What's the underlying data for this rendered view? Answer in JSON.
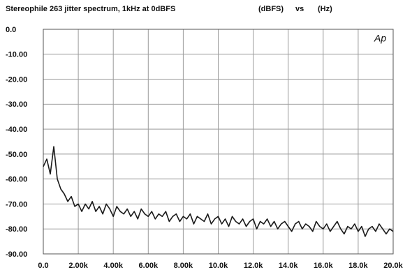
{
  "chart_data": {
    "type": "line",
    "title": "Stereophile  263 jitter spectrum, 1kHz at 0dBFS",
    "y_label": "(dBFS)",
    "connector": "vs",
    "x_label": "(Hz)",
    "watermark": "Ap",
    "x": [
      0,
      200,
      400,
      600,
      800,
      1000,
      1200,
      1400,
      1600,
      1800,
      2000,
      2200,
      2400,
      2600,
      2800,
      3000,
      3200,
      3400,
      3600,
      3800,
      4000,
      4200,
      4400,
      4600,
      4800,
      5000,
      5200,
      5400,
      5600,
      5800,
      6000,
      6200,
      6400,
      6600,
      6800,
      7000,
      7200,
      7400,
      7600,
      7800,
      8000,
      8200,
      8400,
      8600,
      8800,
      9000,
      9200,
      9400,
      9600,
      9800,
      10000,
      10200,
      10400,
      10600,
      10800,
      11000,
      11200,
      11400,
      11600,
      11800,
      12000,
      12200,
      12400,
      12600,
      12800,
      13000,
      13200,
      13400,
      13600,
      13800,
      14000,
      14200,
      14400,
      14600,
      14800,
      15000,
      15200,
      15400,
      15600,
      15800,
      16000,
      16200,
      16400,
      16600,
      16800,
      17000,
      17200,
      17400,
      17600,
      17800,
      18000,
      18200,
      18400,
      18600,
      18800,
      19000,
      19200,
      19400,
      19600,
      19800,
      20000
    ],
    "values": [
      -55,
      -52,
      -58,
      -47,
      -60,
      -64,
      -66,
      -69,
      -67,
      -71,
      -70,
      -73,
      -70,
      -72,
      -69,
      -73,
      -71,
      -74,
      -70,
      -72,
      -75,
      -71,
      -73,
      -74,
      -72,
      -75,
      -73,
      -76,
      -72,
      -74,
      -75,
      -73,
      -76,
      -74,
      -75,
      -73,
      -77,
      -75,
      -74,
      -77,
      -75,
      -76,
      -74,
      -78,
      -75,
      -76,
      -77,
      -74,
      -78,
      -76,
      -75,
      -78,
      -76,
      -79,
      -75,
      -77,
      -78,
      -76,
      -79,
      -77,
      -76,
      -80,
      -77,
      -78,
      -76,
      -79,
      -77,
      -80,
      -78,
      -77,
      -79,
      -81,
      -78,
      -77,
      -80,
      -78,
      -79,
      -81,
      -77,
      -79,
      -80,
      -78,
      -81,
      -79,
      -77,
      -80,
      -82,
      -79,
      -80,
      -78,
      -81,
      -79,
      -83,
      -80,
      -79,
      -81,
      -78,
      -80,
      -82,
      -80,
      -81
    ],
    "color": "#1a1a1a",
    "xlim": [
      0,
      20000
    ],
    "ylim": [
      -90,
      0
    ],
    "xticks": [
      {
        "value": 0,
        "label": "0.0"
      },
      {
        "value": 2000,
        "label": "2.00k"
      },
      {
        "value": 4000,
        "label": "4.00k"
      },
      {
        "value": 6000,
        "label": "6.00k"
      },
      {
        "value": 8000,
        "label": "8.00k"
      },
      {
        "value": 10000,
        "label": "10.0k"
      },
      {
        "value": 12000,
        "label": "12.0k"
      },
      {
        "value": 14000,
        "label": "14.0k"
      },
      {
        "value": 16000,
        "label": "16.0k"
      },
      {
        "value": 18000,
        "label": "18.0k"
      },
      {
        "value": 20000,
        "label": "20.0k"
      }
    ],
    "yticks": [
      {
        "value": 0,
        "label": "0.0"
      },
      {
        "value": -10,
        "label": "-10.00"
      },
      {
        "value": -20,
        "label": "-20.00"
      },
      {
        "value": -30,
        "label": "-30.00"
      },
      {
        "value": -40,
        "label": "-40.00"
      },
      {
        "value": -50,
        "label": "-50.00"
      },
      {
        "value": -60,
        "label": "-60.00"
      },
      {
        "value": -70,
        "label": "-70.00"
      },
      {
        "value": -80,
        "label": "-80.00"
      },
      {
        "value": -90,
        "label": "-90.00"
      }
    ],
    "grid": true
  }
}
